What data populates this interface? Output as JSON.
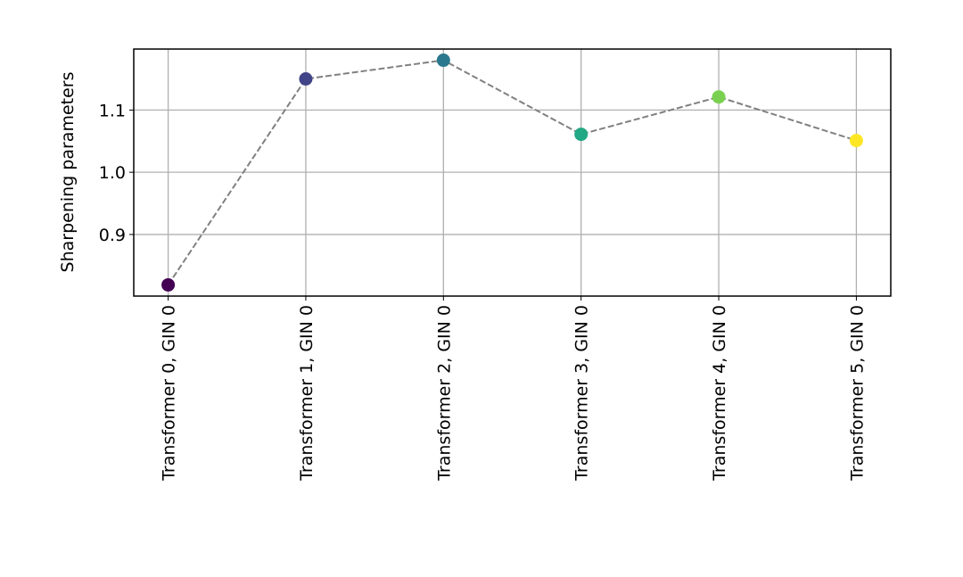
{
  "chart_data": {
    "type": "line",
    "y_label": "Sharpening parameters",
    "categories": [
      "Transformer 0, GIN 0",
      "Transformer 1, GIN 0",
      "Transformer 2, GIN 0",
      "Transformer 3, GIN 0",
      "Transformer 4, GIN 0",
      "Transformer 5, GIN 0"
    ],
    "values": [
      0.819,
      1.15,
      1.18,
      1.061,
      1.121,
      1.051
    ],
    "point_colors": [
      "#440154",
      "#414487",
      "#2a788e",
      "#22a884",
      "#7ad151",
      "#fde725"
    ],
    "line_color": "#808080",
    "line_style": "dashed",
    "ylim": [
      0.801,
      1.198
    ],
    "yticks": [
      0.9,
      {
        "value": 1,
        "label": "1.0"
      },
      1.1
    ],
    "grid": true
  }
}
